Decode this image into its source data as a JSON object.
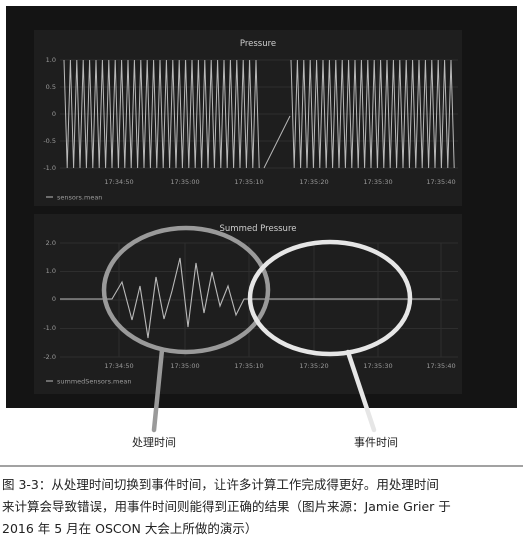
{
  "panels": [
    {
      "title": "Pressure",
      "y_ticks": [
        "1.0",
        "0.5",
        "0",
        "-0.5",
        "-1.0"
      ],
      "x_ticks": [
        "17:34:50",
        "17:35:00",
        "17:35:10",
        "17:35:20",
        "17:35:30",
        "17:35:40"
      ],
      "legend": "sensors.mean"
    },
    {
      "title": "Summed Pressure",
      "y_ticks": [
        "2.0",
        "1.0",
        "0",
        "-1.0",
        "-2.0"
      ],
      "x_ticks": [
        "17:34:50",
        "17:35:00",
        "17:35:10",
        "17:35:20",
        "17:35:30",
        "17:35:40"
      ],
      "legend": "summedSensors.mean"
    }
  ],
  "annotations": {
    "processing_time": "处理时间",
    "event_time": "事件时间"
  },
  "caption": {
    "line1": "图 3-3：从处理时间切换到事件时间，让许多计算工作完成得更好。用处理时间",
    "line2": "来计算会导致错误，用事件时间则能得到正确的结果（图片来源：Jamie Grier 于",
    "line3": "2016 年 5 月在 OSCON 大会上所做的演示）"
  },
  "colors": {
    "background": "#141414",
    "panel": "#1e1e1e",
    "signal": "#b9b9b9",
    "annotation_ellipse": "#9a9a9a"
  }
}
